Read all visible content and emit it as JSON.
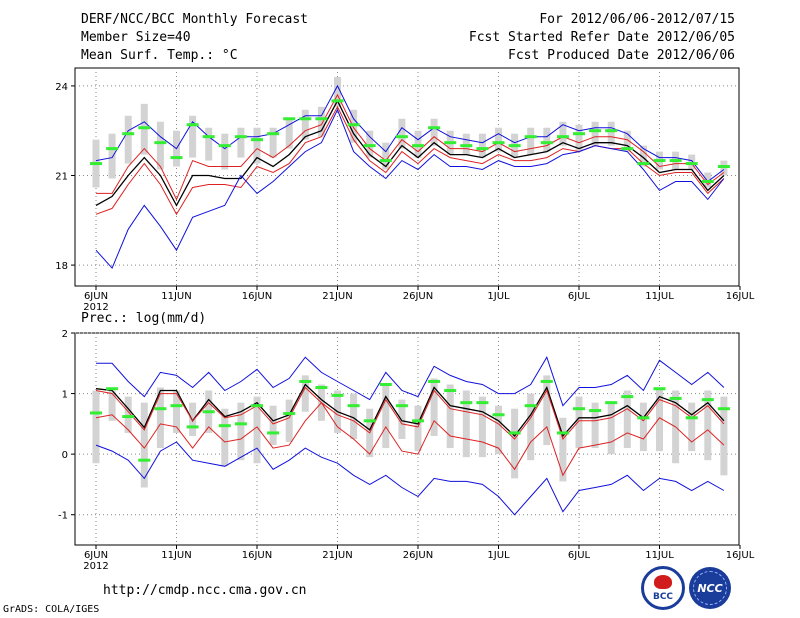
{
  "header": {
    "title": "DERF/NCC/BCC Monthly Forecast",
    "member_size": "Member Size=40",
    "variable": "Mean Surf. Temp.: °C",
    "forecast_period": "For 2012/06/06-2012/07/15",
    "start_date": "Fcst Started Refer Date 2012/06/05",
    "produced_date": "Fcst Produced Date 2012/06/06"
  },
  "footer": {
    "url": "http://cmdp.ncc.cma.gov.cn",
    "credit": "GrADS: COLA/IGES",
    "logo_bcc": "BCC",
    "logo_ncc": "NCC"
  },
  "colors": {
    "obs_bar": "#d3d3d3",
    "members": "#33ee33",
    "mean": "#000000",
    "inner_band": "#dd2222",
    "outer_band": "#1111dd"
  },
  "chart_data": [
    {
      "type": "line",
      "title": "Mean Surf. Temp.: °C",
      "xlabel": "",
      "ylabel": "",
      "x_ticks": [
        "6JUN",
        "11JUN",
        "16JUN",
        "21JUN",
        "26JUN",
        "1JUL",
        "6JUL",
        "11JUL",
        "16JUL"
      ],
      "x_year": "2012",
      "ylim": [
        17.3,
        24.6
      ],
      "y_ticks": [
        18,
        21,
        24
      ],
      "grid": true,
      "days": 40,
      "series": [
        {
          "name": "mean",
          "color": "#000000",
          "values": [
            20.0,
            20.3,
            21.0,
            21.6,
            21.0,
            20.0,
            21.0,
            21.0,
            20.9,
            20.9,
            21.6,
            21.3,
            21.7,
            22.3,
            22.5,
            23.5,
            22.4,
            21.7,
            21.3,
            22.0,
            21.6,
            22.1,
            21.7,
            21.7,
            21.6,
            21.9,
            21.6,
            21.7,
            21.8,
            22.1,
            21.9,
            22.1,
            22.1,
            22.0,
            21.6,
            21.1,
            21.2,
            21.2,
            20.5,
            21.0
          ]
        },
        {
          "name": "upper-red",
          "color": "#dd2222",
          "values": [
            20.4,
            20.4,
            21.3,
            21.9,
            21.3,
            20.2,
            21.5,
            21.3,
            21.3,
            21.3,
            21.9,
            21.6,
            22.0,
            22.5,
            22.7,
            23.7,
            22.6,
            21.9,
            21.5,
            22.2,
            21.8,
            22.3,
            21.9,
            21.9,
            21.8,
            22.1,
            21.8,
            21.9,
            22.0,
            22.3,
            22.1,
            22.3,
            22.3,
            22.2,
            21.8,
            21.3,
            21.4,
            21.4,
            20.7,
            21.1
          ]
        },
        {
          "name": "lower-red",
          "color": "#dd2222",
          "values": [
            19.7,
            19.9,
            20.7,
            21.4,
            20.7,
            19.7,
            20.6,
            20.7,
            20.7,
            20.6,
            21.3,
            21.1,
            21.4,
            22.1,
            22.3,
            23.3,
            22.2,
            21.5,
            21.1,
            21.8,
            21.4,
            21.9,
            21.6,
            21.5,
            21.4,
            21.7,
            21.5,
            21.5,
            21.6,
            21.9,
            21.8,
            22.0,
            21.9,
            21.9,
            21.4,
            21.0,
            21.1,
            21.1,
            20.4,
            20.9
          ]
        },
        {
          "name": "upper-blue",
          "color": "#1111dd",
          "values": [
            21.5,
            21.6,
            22.5,
            22.8,
            22.3,
            21.9,
            22.8,
            22.3,
            21.9,
            22.3,
            22.3,
            22.4,
            22.7,
            23.0,
            23.0,
            24.0,
            22.9,
            22.3,
            21.8,
            22.6,
            22.2,
            22.6,
            22.3,
            22.2,
            22.1,
            22.4,
            22.1,
            22.3,
            22.3,
            22.7,
            22.5,
            22.6,
            22.6,
            22.4,
            21.9,
            21.6,
            21.6,
            21.5,
            20.8,
            21.2
          ]
        },
        {
          "name": "lower-blue",
          "color": "#1111dd",
          "values": [
            18.5,
            17.9,
            19.2,
            20.0,
            19.3,
            18.5,
            19.6,
            19.8,
            20.0,
            21.0,
            20.4,
            20.8,
            21.3,
            21.8,
            22.1,
            23.2,
            21.8,
            21.3,
            20.9,
            21.5,
            21.2,
            21.7,
            21.3,
            21.3,
            21.2,
            21.5,
            21.3,
            21.3,
            21.4,
            21.7,
            21.8,
            22.0,
            21.9,
            21.8,
            21.2,
            20.5,
            20.8,
            20.8,
            20.2,
            20.9
          ]
        }
      ],
      "bars": {
        "name": "member-range",
        "low": [
          20.6,
          20.9,
          21.4,
          21.7,
          21.2,
          21.3,
          21.6,
          21.5,
          21.2,
          21.6,
          21.4,
          21.6,
          21.9,
          22.2,
          22.3,
          23.3,
          22.1,
          21.6,
          21.2,
          21.9,
          21.6,
          22.0,
          21.7,
          21.7,
          21.6,
          21.8,
          21.6,
          21.7,
          21.8,
          22.0,
          21.8,
          22.0,
          22.0,
          21.8,
          21.3,
          21.2,
          21.2,
          21.2,
          20.6,
          21.0
        ],
        "high": [
          22.2,
          22.4,
          23.0,
          23.4,
          22.8,
          22.5,
          23.0,
          22.6,
          22.4,
          22.6,
          22.6,
          22.6,
          22.9,
          23.2,
          23.3,
          24.3,
          23.2,
          22.5,
          22.1,
          22.9,
          22.5,
          22.9,
          22.5,
          22.4,
          22.4,
          22.6,
          22.4,
          22.6,
          22.6,
          22.8,
          22.7,
          22.8,
          22.8,
          22.5,
          22.0,
          21.8,
          21.8,
          21.7,
          21.1,
          21.5
        ]
      },
      "markers": {
        "name": "members",
        "values": [
          21.4,
          21.9,
          22.4,
          22.6,
          22.1,
          21.6,
          22.7,
          22.3,
          22.0,
          22.3,
          22.2,
          22.4,
          22.9,
          22.9,
          22.9,
          23.5,
          22.7,
          22.0,
          21.5,
          22.3,
          22.0,
          22.6,
          22.1,
          22.0,
          21.9,
          22.1,
          22.0,
          22.3,
          22.1,
          22.3,
          22.4,
          22.5,
          22.5,
          21.9,
          21.4,
          21.5,
          21.5,
          21.4,
          20.8,
          21.3
        ]
      }
    },
    {
      "type": "line",
      "title": "Prec.: log(mm/d)",
      "xlabel": "",
      "ylabel": "",
      "x_ticks": [
        "6JUN",
        "11JUN",
        "16JUN",
        "21JUN",
        "26JUN",
        "1JUL",
        "6JUL",
        "11JUL",
        "16JUL"
      ],
      "x_year": "2012",
      "ylim": [
        -1.5,
        2.0
      ],
      "y_ticks": [
        -1,
        0,
        1,
        2
      ],
      "grid": true,
      "days": 40,
      "series": [
        {
          "name": "mean",
          "color": "#000000",
          "values": [
            1.08,
            1.05,
            0.75,
            0.44,
            1.05,
            1.05,
            0.55,
            0.9,
            0.62,
            0.7,
            0.85,
            0.55,
            0.65,
            1.15,
            0.9,
            0.7,
            0.6,
            0.4,
            0.95,
            0.55,
            0.5,
            1.1,
            0.8,
            0.75,
            0.7,
            0.55,
            0.3,
            0.65,
            1.1,
            0.3,
            0.6,
            0.6,
            0.65,
            0.8,
            0.6,
            0.95,
            0.85,
            0.65,
            0.85,
            0.55
          ]
        },
        {
          "name": "upper-red",
          "color": "#dd2222",
          "values": [
            1.05,
            1.0,
            0.7,
            0.4,
            1.0,
            1.0,
            0.55,
            0.85,
            0.6,
            0.65,
            0.8,
            0.5,
            0.6,
            1.1,
            0.85,
            0.65,
            0.55,
            0.35,
            0.9,
            0.5,
            0.45,
            1.05,
            0.75,
            0.7,
            0.65,
            0.5,
            0.25,
            0.6,
            1.05,
            0.25,
            0.55,
            0.55,
            0.6,
            0.75,
            0.55,
            0.9,
            0.8,
            0.6,
            0.8,
            0.5
          ]
        },
        {
          "name": "lower-red",
          "color": "#dd2222",
          "values": [
            0.6,
            0.65,
            0.4,
            0.1,
            0.5,
            0.45,
            0.1,
            0.45,
            0.2,
            0.25,
            0.45,
            0.1,
            0.15,
            0.55,
            0.85,
            0.45,
            0.25,
            0.0,
            0.45,
            0.05,
            0.0,
            0.55,
            0.3,
            0.25,
            0.2,
            0.1,
            -0.25,
            0.2,
            0.45,
            -0.35,
            0.1,
            0.15,
            0.2,
            0.35,
            0.25,
            0.6,
            0.45,
            0.2,
            0.4,
            0.15
          ]
        },
        {
          "name": "upper-blue",
          "color": "#1111dd",
          "values": [
            1.5,
            1.5,
            1.2,
            0.95,
            1.35,
            1.3,
            1.1,
            1.35,
            1.05,
            1.2,
            1.4,
            1.1,
            1.25,
            1.6,
            1.35,
            1.2,
            1.05,
            0.9,
            1.35,
            1.05,
            0.95,
            1.45,
            1.3,
            1.2,
            1.15,
            1.0,
            1.0,
            1.15,
            1.6,
            0.8,
            1.1,
            1.1,
            1.15,
            1.3,
            1.05,
            1.55,
            1.35,
            1.15,
            1.35,
            1.1
          ]
        },
        {
          "name": "lower-blue",
          "color": "#1111dd",
          "values": [
            0.15,
            0.05,
            -0.1,
            -0.4,
            0.05,
            0.2,
            -0.1,
            -0.15,
            -0.2,
            -0.05,
            0.1,
            -0.25,
            -0.1,
            0.1,
            -0.05,
            -0.15,
            -0.35,
            -0.5,
            -0.35,
            -0.55,
            -0.7,
            -0.4,
            -0.45,
            -0.45,
            -0.5,
            -0.7,
            -1.0,
            -0.7,
            -0.4,
            -0.95,
            -0.6,
            -0.55,
            -0.5,
            -0.35,
            -0.6,
            -0.4,
            -0.45,
            -0.6,
            -0.45,
            -0.6
          ]
        }
      ],
      "bars": {
        "name": "member-range",
        "low": [
          -0.15,
          0.55,
          0.35,
          -0.55,
          0.1,
          0.35,
          0.3,
          0.35,
          -0.2,
          -0.1,
          -0.15,
          0.15,
          0.2,
          0.7,
          0.55,
          0.35,
          0.25,
          -0.05,
          0.1,
          0.25,
          0.05,
          0.3,
          0.1,
          -0.05,
          -0.05,
          0.0,
          -0.4,
          -0.1,
          0.15,
          -0.45,
          0.1,
          0.1,
          0.0,
          0.1,
          0.05,
          0.05,
          -0.15,
          0.05,
          -0.1,
          -0.35
        ],
        "high": [
          1.05,
          1.05,
          0.95,
          0.85,
          1.1,
          1.05,
          0.85,
          1.05,
          0.75,
          0.85,
          0.95,
          0.8,
          0.9,
          1.3,
          1.15,
          1.05,
          1.0,
          0.75,
          1.15,
          0.9,
          0.8,
          1.25,
          1.15,
          1.05,
          0.95,
          0.8,
          0.75,
          1.0,
          1.3,
          0.6,
          0.95,
          0.85,
          0.85,
          1.05,
          0.85,
          1.1,
          1.05,
          0.85,
          1.05,
          0.95
        ]
      },
      "markers": {
        "name": "members",
        "values": [
          0.68,
          1.08,
          0.62,
          -0.1,
          0.75,
          0.8,
          0.45,
          0.7,
          0.47,
          0.5,
          0.8,
          0.35,
          0.67,
          1.2,
          1.1,
          0.97,
          0.8,
          0.55,
          1.15,
          0.8,
          0.55,
          1.2,
          1.05,
          0.85,
          0.85,
          0.65,
          0.35,
          0.8,
          1.2,
          0.35,
          0.75,
          0.72,
          0.85,
          0.95,
          0.6,
          1.08,
          0.92,
          0.6,
          0.9,
          0.75
        ]
      }
    }
  ]
}
